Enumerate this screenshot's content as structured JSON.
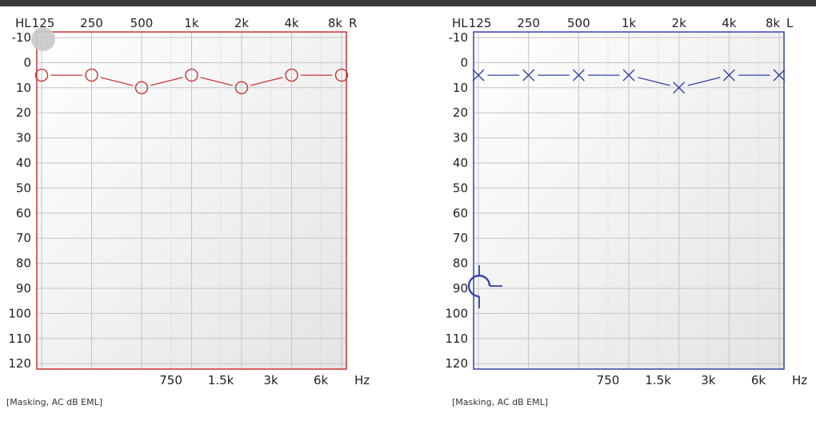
{
  "chart_data": [
    {
      "type": "line",
      "ear": "right",
      "ear_label": "R",
      "corner_label": "HL",
      "x_unit_label": "Hz",
      "x_scale": "log",
      "y_inverted": true,
      "grid": true,
      "ylim": [
        -10,
        120
      ],
      "y_ticks": [
        "-10",
        "0",
        "10",
        "20",
        "30",
        "40",
        "50",
        "60",
        "70",
        "80",
        "90",
        "100",
        "110",
        "120"
      ],
      "x_top_ticks": [
        {
          "f": 125,
          "label": "125"
        },
        {
          "f": 250,
          "label": "250"
        },
        {
          "f": 500,
          "label": "500"
        },
        {
          "f": 1000,
          "label": "1k"
        },
        {
          "f": 2000,
          "label": "2k"
        },
        {
          "f": 4000,
          "label": "4k"
        },
        {
          "f": 8000,
          "label": "8k"
        }
      ],
      "x_bottom_ticks": [
        {
          "f": 750,
          "label": "750"
        },
        {
          "f": 1500,
          "label": "1.5k"
        },
        {
          "f": 3000,
          "label": "3k"
        },
        {
          "f": 6000,
          "label": "6k"
        }
      ],
      "color": "#cc3333",
      "marker": "circle",
      "series": [
        {
          "x": [
            125,
            250,
            500,
            1000,
            2000,
            4000,
            8000
          ],
          "values": [
            5,
            5,
            10,
            5,
            10,
            5,
            5
          ]
        }
      ],
      "cursor": "disc-gray",
      "footnote": "[Masking, AC dB EML]"
    },
    {
      "type": "line",
      "ear": "left",
      "ear_label": "L",
      "corner_label": "HL",
      "x_unit_label": "Hz",
      "x_scale": "log",
      "y_inverted": true,
      "grid": true,
      "ylim": [
        -10,
        120
      ],
      "y_ticks": [
        "-10",
        "0",
        "10",
        "20",
        "30",
        "40",
        "50",
        "60",
        "70",
        "80",
        "90",
        "100",
        "110",
        "120"
      ],
      "x_top_ticks": [
        {
          "f": 125,
          "label": "125"
        },
        {
          "f": 250,
          "label": "250"
        },
        {
          "f": 500,
          "label": "500"
        },
        {
          "f": 1000,
          "label": "1k"
        },
        {
          "f": 2000,
          "label": "2k"
        },
        {
          "f": 4000,
          "label": "4k"
        },
        {
          "f": 8000,
          "label": "8k"
        }
      ],
      "x_bottom_ticks": [
        {
          "f": 750,
          "label": "750"
        },
        {
          "f": 1500,
          "label": "1.5k"
        },
        {
          "f": 3000,
          "label": "3k"
        },
        {
          "f": 6000,
          "label": "6k"
        }
      ],
      "color": "#3344aa",
      "marker": "x",
      "series": [
        {
          "x": [
            125,
            250,
            500,
            1000,
            2000,
            4000,
            8000
          ],
          "values": [
            5,
            5,
            5,
            5,
            10,
            5,
            5
          ]
        }
      ],
      "cursor": "crosshair-blue",
      "footnote": "[Masking, AC dB EML]"
    }
  ]
}
